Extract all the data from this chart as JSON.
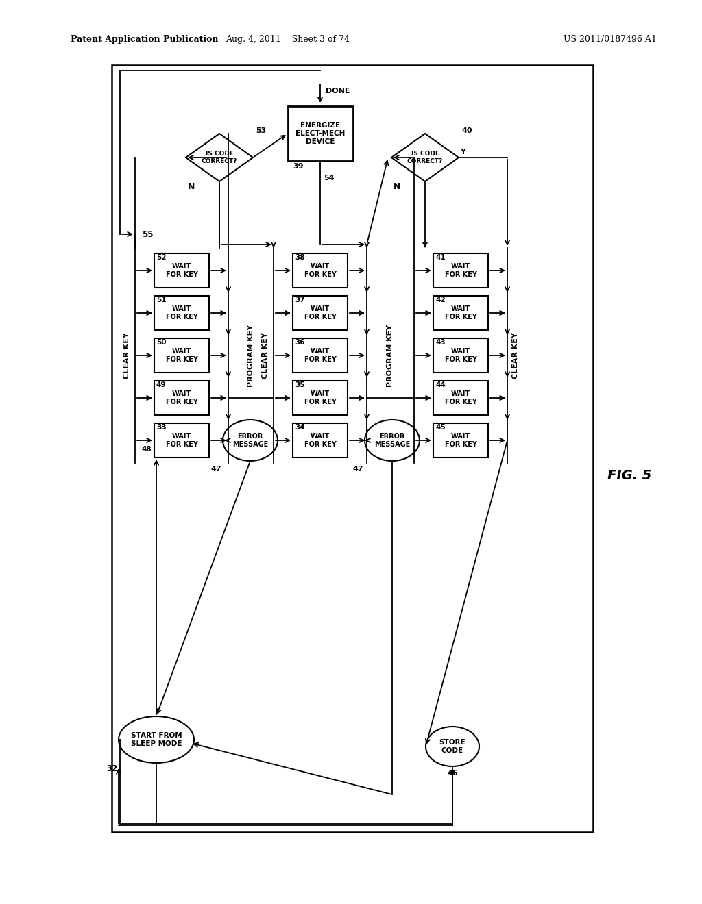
{
  "header_left": "Patent Application Publication",
  "header_center": "Aug. 4, 2011    Sheet 3 of 74",
  "header_right": "US 2011/0187496 A1",
  "fig_label": "FIG. 5",
  "bg": "#ffffff"
}
